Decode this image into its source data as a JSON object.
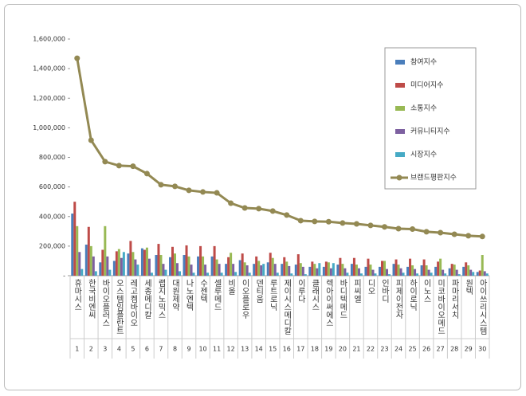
{
  "chart_data": {
    "type": "bar+line",
    "categories": [
      "휴마시스",
      "한국비엔씨",
      "바이오플러스",
      "오스템임플란트",
      "레고켐바이오",
      "세종메디칼",
      "랩지노믹스",
      "대원제약",
      "나노엔텍",
      "수젠텍",
      "셀루메드",
      "비올",
      "이오플로우",
      "덴티움",
      "루트로닉",
      "제이시스메디칼",
      "이루다",
      "클래시스",
      "렉아이써에스",
      "바디텍메드",
      "피씨엘",
      "디오",
      "인바디",
      "피제이전자",
      "하이로닉",
      "이노스",
      "미코바이오메드",
      "파마리서치",
      "원텍",
      "아이쓰리시스템"
    ],
    "ranks": [
      1,
      2,
      3,
      4,
      5,
      6,
      7,
      8,
      9,
      10,
      11,
      12,
      13,
      14,
      15,
      16,
      17,
      18,
      19,
      20,
      21,
      22,
      23,
      24,
      25,
      26,
      27,
      28,
      29,
      30
    ],
    "series": [
      {
        "name": "참여지수",
        "color": "#4a7ebb",
        "values": [
          420000,
          210000,
          90000,
          100000,
          150000,
          185000,
          140000,
          125000,
          140000,
          130000,
          130000,
          80000,
          105000,
          80000,
          90000,
          80000,
          75000,
          60000,
          60000,
          75000,
          80000,
          60000,
          60000,
          80000,
          60000,
          70000,
          60000,
          50000,
          60000,
          25000
        ]
      },
      {
        "name": "미디어지수",
        "color": "#be4b48",
        "values": [
          500000,
          330000,
          175000,
          165000,
          235000,
          175000,
          215000,
          195000,
          205000,
          200000,
          200000,
          125000,
          150000,
          130000,
          155000,
          125000,
          145000,
          95000,
          95000,
          120000,
          120000,
          115000,
          100000,
          110000,
          115000,
          110000,
          95000,
          80000,
          90000,
          35000
        ]
      },
      {
        "name": "소통지수",
        "color": "#98b954",
        "values": [
          335000,
          200000,
          335000,
          180000,
          160000,
          190000,
          140000,
          150000,
          130000,
          130000,
          110000,
          155000,
          90000,
          100000,
          120000,
          95000,
          85000,
          80000,
          90000,
          80000,
          75000,
          75000,
          100000,
          75000,
          70000,
          70000,
          115000,
          75000,
          70000,
          140000
        ]
      },
      {
        "name": "커뮤니티지수",
        "color": "#7d60a0",
        "values": [
          160000,
          130000,
          130000,
          120000,
          110000,
          115000,
          80000,
          85000,
          75000,
          75000,
          80000,
          80000,
          70000,
          70000,
          80000,
          65000,
          60000,
          50000,
          50000,
          50000,
          50000,
          40000,
          45000,
          50000,
          45000,
          40000,
          40000,
          40000,
          40000,
          30000
        ]
      },
      {
        "name": "시장지수",
        "color": "#46aac5",
        "values": [
          45000,
          30000,
          40000,
          160000,
          75000,
          20000,
          40000,
          30000,
          20000,
          20000,
          20000,
          25000,
          20000,
          80000,
          20000,
          15000,
          10000,
          85000,
          85000,
          20000,
          15000,
          15000,
          10000,
          20000,
          15000,
          20000,
          15000,
          10000,
          25000,
          15000
        ]
      },
      {
        "name": "브랜드평판지수",
        "color": "#938953",
        "type": "line",
        "values": [
          1470000,
          916000,
          771000,
          744000,
          740000,
          690000,
          615000,
          604000,
          577000,
          566000,
          560000,
          490000,
          458000,
          453000,
          437000,
          410000,
          372000,
          367000,
          365000,
          356000,
          350000,
          340000,
          330000,
          318000,
          315000,
          297000,
          291000,
          280000,
          270000,
          265000
        ]
      }
    ],
    "ylim": [
      0,
      1600000
    ],
    "yticks": [
      {
        "value": 0,
        "label": "-"
      },
      {
        "value": 200000,
        "label": "200,000"
      },
      {
        "value": 400000,
        "label": "400,000"
      },
      {
        "value": 600000,
        "label": "600,000"
      },
      {
        "value": 800000,
        "label": "800,000"
      },
      {
        "value": 1000000,
        "label": "1,000,000"
      },
      {
        "value": 1200000,
        "label": "1,200,000"
      },
      {
        "value": 1400000,
        "label": "1,400,000"
      },
      {
        "value": 1600000,
        "label": "1,600,000"
      }
    ]
  }
}
